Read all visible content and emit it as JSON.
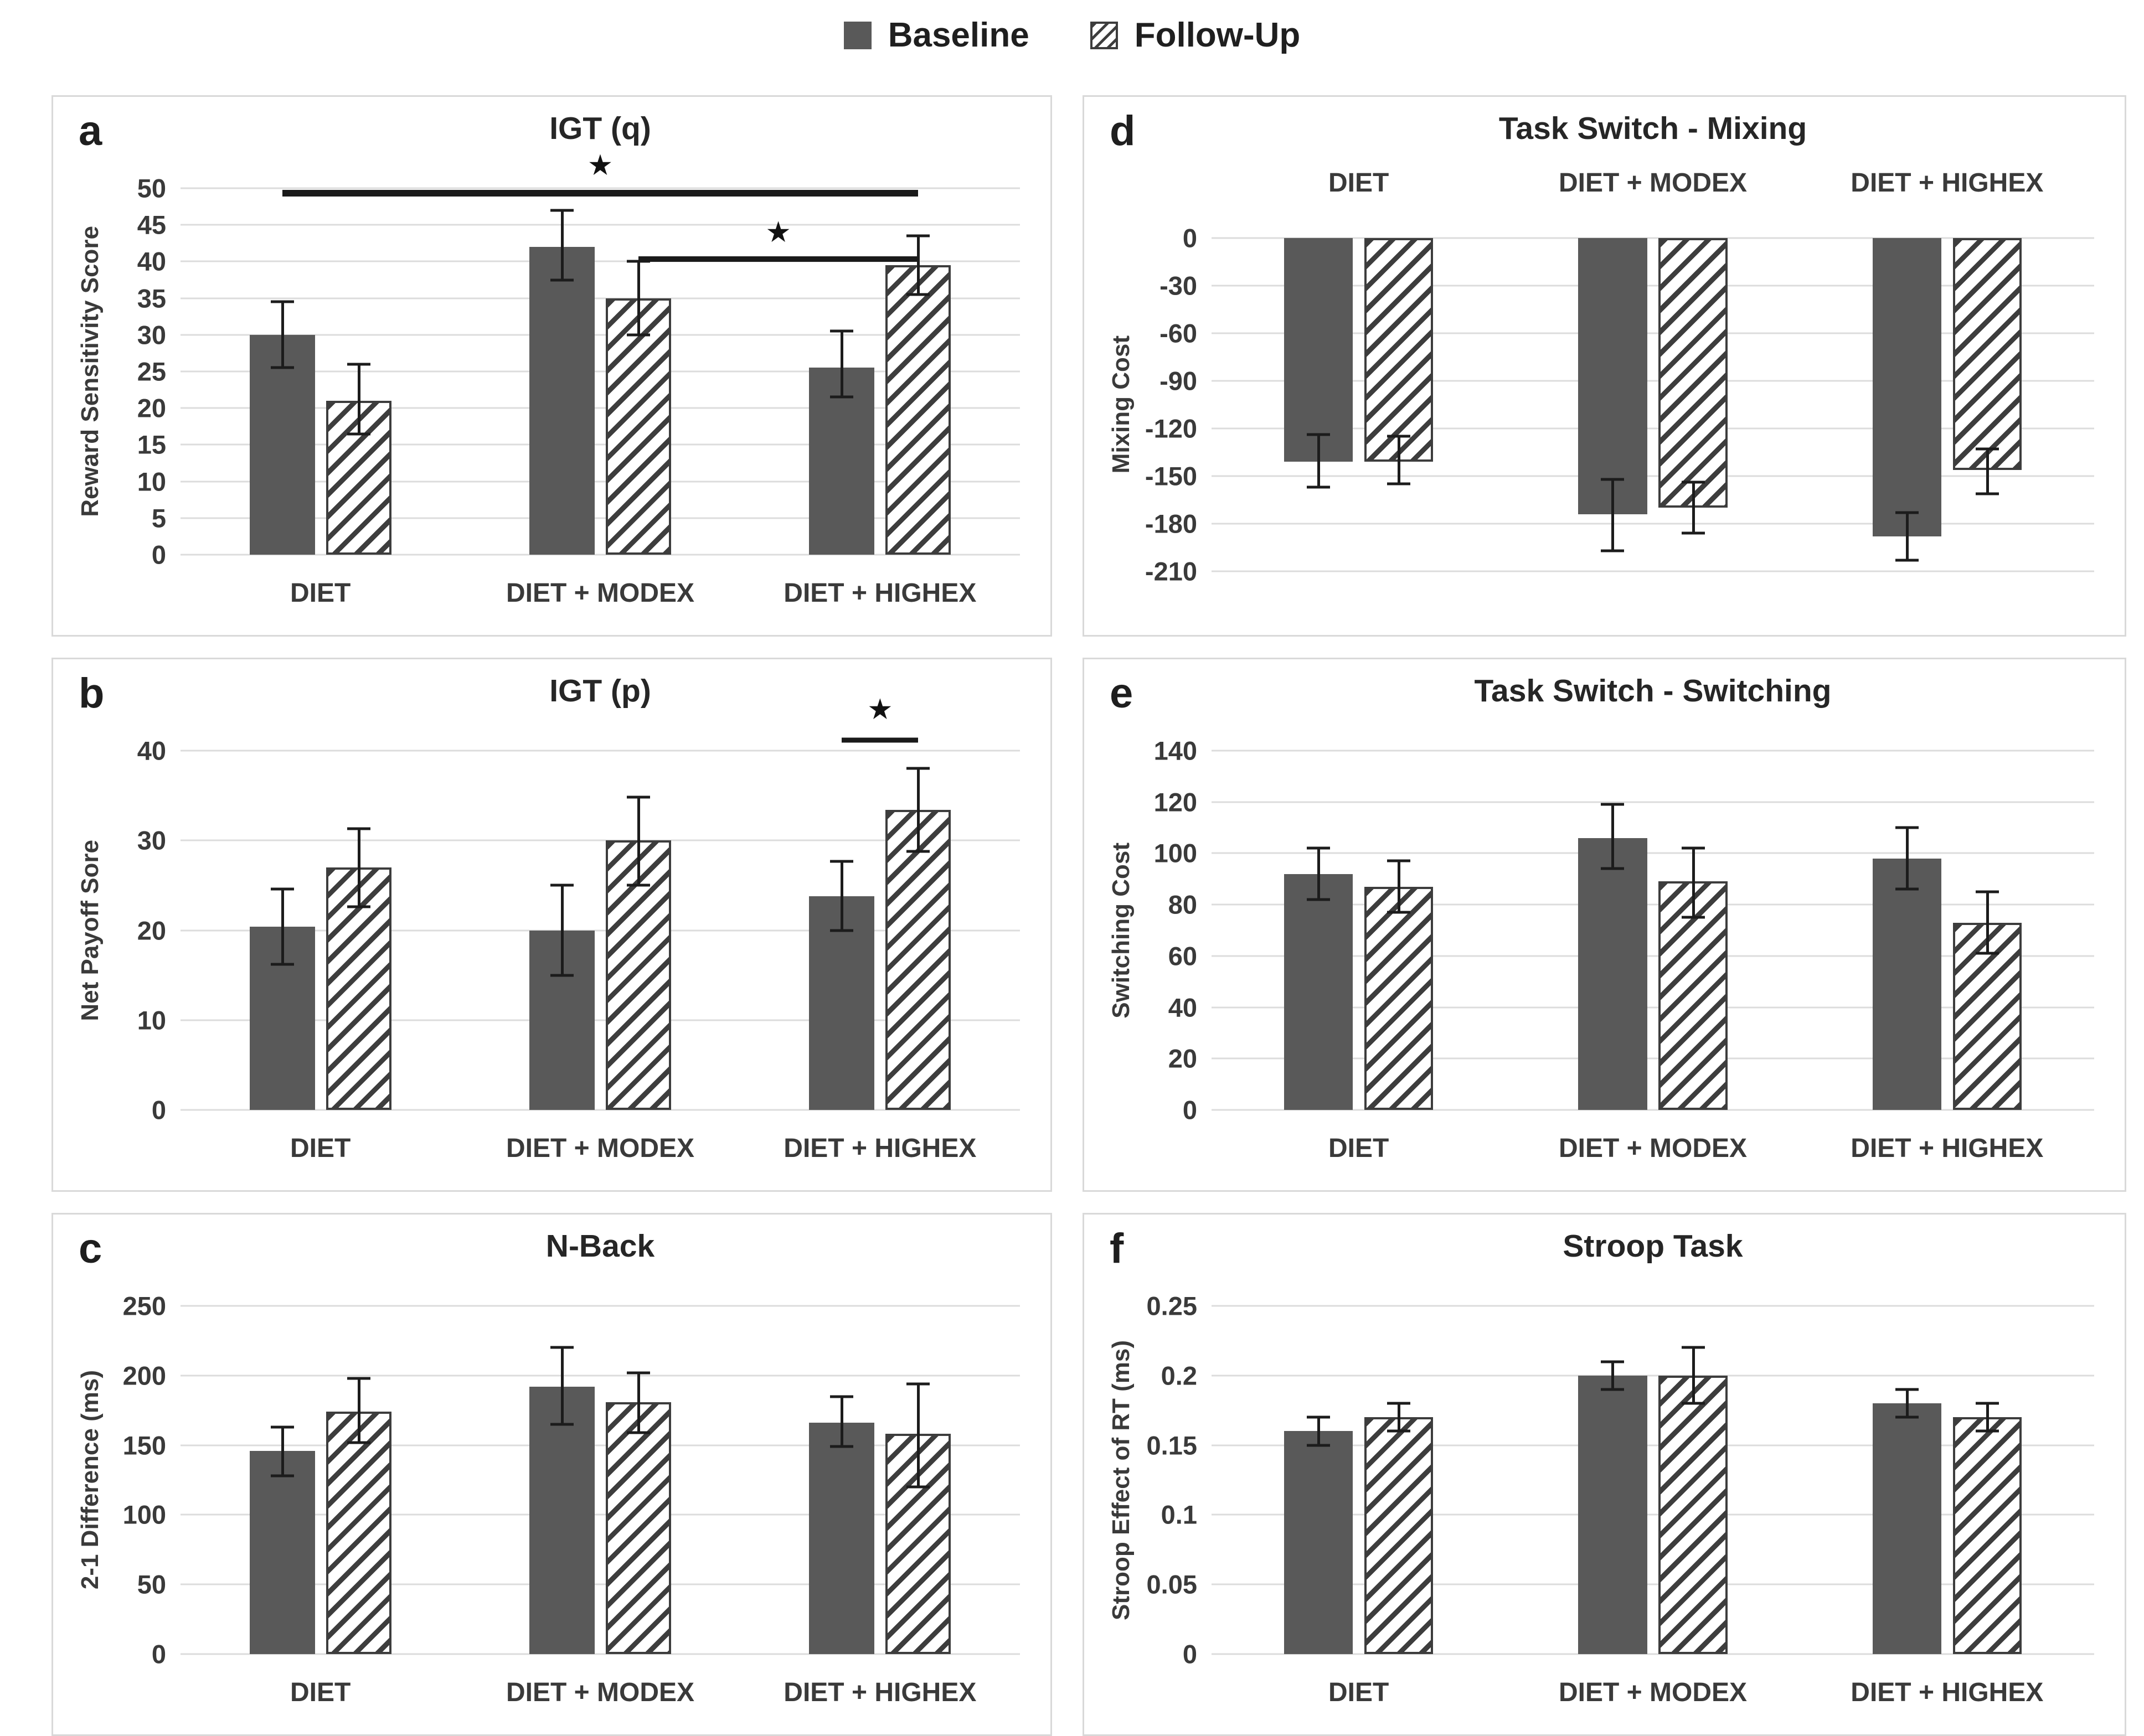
{
  "glyphs": {
    "star": "★"
  },
  "colors": {
    "baseline_fill": "#595959",
    "hatch_stroke": "#3d3d3d",
    "gridline": "#dcdcdc",
    "panel_border": "#d9d9d9",
    "error_bar": "#1c1c1c",
    "text": "#3a3a3a"
  },
  "legend": {
    "items": [
      {
        "label": "Baseline",
        "swatch": "solid"
      },
      {
        "label": "Follow-Up",
        "swatch": "hatch"
      }
    ]
  },
  "chart_data": [
    {
      "type": "bar",
      "letter": "a",
      "title": "IGT (q)",
      "ylabel": "Reward Sensitivity Score",
      "categories": [
        "DIET",
        "DIET + MODEX",
        "DIET + HIGHEX"
      ],
      "category_label_position": "bottom",
      "ymin": 0,
      "ymax": 50,
      "tick_values": [
        0,
        5,
        10,
        15,
        20,
        25,
        30,
        35,
        40,
        45,
        50
      ],
      "tick_labels": [
        "0",
        "5",
        "10",
        "15",
        "20",
        "25",
        "30",
        "35",
        "40",
        "45",
        "50"
      ],
      "series": [
        {
          "name": "Baseline",
          "values": [
            30,
            42,
            25.5
          ],
          "err_lo": [
            25.5,
            37.5,
            21.5
          ],
          "err_hi": [
            34.5,
            47,
            30.5
          ]
        },
        {
          "name": "Follow-Up",
          "values": [
            21,
            35,
            39.5
          ],
          "err_lo": [
            16.5,
            30,
            35.5
          ],
          "err_hi": [
            26,
            40,
            43.5
          ]
        }
      ],
      "annotations": [
        {
          "y": 49.3,
          "star_y": 53.2,
          "from": [
            0,
            0
          ],
          "to": [
            2,
            1
          ],
          "star": true,
          "t": 12
        },
        {
          "y": 40.3,
          "star_y": 44.0,
          "from": [
            1,
            1
          ],
          "to": [
            2,
            1
          ],
          "star": true,
          "t": 10
        }
      ]
    },
    {
      "type": "bar",
      "letter": "d",
      "title": "Task Switch - Mixing",
      "ylabel": "Mixing Cost",
      "categories": [
        "DIET",
        "DIET + MODEX",
        "DIET + HIGHEX"
      ],
      "category_label_position": "top",
      "direction": "down",
      "ymin": -210,
      "ymax": 0,
      "tick_values": [
        0,
        -30,
        -60,
        -90,
        -120,
        -150,
        -180,
        -210
      ],
      "tick_labels": [
        "0",
        "-30",
        "-60",
        "-90",
        "-120",
        "-150",
        "-180",
        "-210"
      ],
      "series": [
        {
          "name": "Baseline",
          "values": [
            -141,
            -174,
            -188
          ],
          "err_lo": [
            -157,
            -197,
            -203
          ],
          "err_hi": [
            -124,
            -152,
            -173
          ]
        },
        {
          "name": "Follow-Up",
          "values": [
            -141,
            -170,
            -146
          ],
          "err_lo": [
            -155,
            -186,
            -161
          ],
          "err_hi": [
            -125,
            -154,
            -133
          ]
        }
      ],
      "annotations": []
    },
    {
      "type": "bar",
      "letter": "b",
      "title": "IGT (p)",
      "ylabel": "Net Payoff Sore",
      "categories": [
        "DIET",
        "DIET + MODEX",
        "DIET + HIGHEX"
      ],
      "category_label_position": "bottom",
      "ymin": 0,
      "ymax": 40,
      "tick_values": [
        0,
        10,
        20,
        30,
        40
      ],
      "tick_labels": [
        "0",
        "10",
        "20",
        "30",
        "40"
      ],
      "series": [
        {
          "name": "Baseline",
          "values": [
            20.4,
            20,
            23.8
          ],
          "err_lo": [
            16.2,
            15,
            20
          ],
          "err_hi": [
            24.6,
            25,
            27.7
          ]
        },
        {
          "name": "Follow-Up",
          "values": [
            27,
            30,
            33.4
          ],
          "err_lo": [
            22.6,
            25,
            28.8
          ],
          "err_hi": [
            31.3,
            34.8,
            38
          ]
        }
      ],
      "annotations": [
        {
          "y": 41.2,
          "star_y": 44.6,
          "from": [
            2,
            0
          ],
          "to": [
            2,
            1
          ],
          "star": true,
          "t": 9
        }
      ]
    },
    {
      "type": "bar",
      "letter": "e",
      "title": "Task Switch - Switching",
      "ylabel": "Switching Cost",
      "categories": [
        "DIET",
        "DIET + MODEX",
        "DIET + HIGHEX"
      ],
      "category_label_position": "bottom",
      "ymin": 0,
      "ymax": 140,
      "tick_values": [
        0,
        20,
        40,
        60,
        80,
        100,
        120,
        140
      ],
      "tick_labels": [
        "0",
        "20",
        "40",
        "60",
        "80",
        "100",
        "120",
        "140"
      ],
      "series": [
        {
          "name": "Baseline",
          "values": [
            92,
            106,
            98
          ],
          "err_lo": [
            82,
            94,
            86
          ],
          "err_hi": [
            102,
            119,
            110
          ]
        },
        {
          "name": "Follow-Up",
          "values": [
            87,
            89,
            73
          ],
          "err_lo": [
            77,
            75,
            61
          ],
          "err_hi": [
            97,
            102,
            85
          ]
        }
      ],
      "annotations": []
    },
    {
      "type": "bar",
      "letter": "c",
      "title": "N-Back",
      "ylabel": "2-1 Difference (ms)",
      "categories": [
        "DIET",
        "DIET + MODEX",
        "DIET + HIGHEX"
      ],
      "category_label_position": "bottom",
      "ymin": 0,
      "ymax": 250,
      "tick_values": [
        0,
        50,
        100,
        150,
        200,
        250
      ],
      "tick_labels": [
        "0",
        "50",
        "100",
        "150",
        "200",
        "250"
      ],
      "series": [
        {
          "name": "Baseline",
          "values": [
            146,
            192,
            166
          ],
          "err_lo": [
            128,
            165,
            149
          ],
          "err_hi": [
            163,
            220,
            185
          ]
        },
        {
          "name": "Follow-Up",
          "values": [
            174,
            181,
            158
          ],
          "err_lo": [
            152,
            159,
            120
          ],
          "err_hi": [
            198,
            202,
            194
          ]
        }
      ],
      "annotations": []
    },
    {
      "type": "bar",
      "letter": "f",
      "title": "Stroop Task",
      "ylabel": "Stroop Effect of RT (ms)",
      "categories": [
        "DIET",
        "DIET + MODEX",
        "DIET + HIGHEX"
      ],
      "category_label_position": "bottom",
      "ymin": 0,
      "ymax": 0.25,
      "tick_values": [
        0,
        0.05,
        0.1,
        0.15,
        0.2,
        0.25
      ],
      "tick_labels": [
        "0",
        "0.05",
        "0.1",
        "0.15",
        "0.2",
        "0.25"
      ],
      "series": [
        {
          "name": "Baseline",
          "values": [
            0.16,
            0.2,
            0.18
          ],
          "err_lo": [
            0.15,
            0.19,
            0.17
          ],
          "err_hi": [
            0.17,
            0.21,
            0.19
          ]
        },
        {
          "name": "Follow-Up",
          "values": [
            0.17,
            0.2,
            0.17
          ],
          "err_lo": [
            0.16,
            0.18,
            0.16
          ],
          "err_hi": [
            0.18,
            0.22,
            0.18
          ]
        }
      ],
      "annotations": []
    }
  ]
}
